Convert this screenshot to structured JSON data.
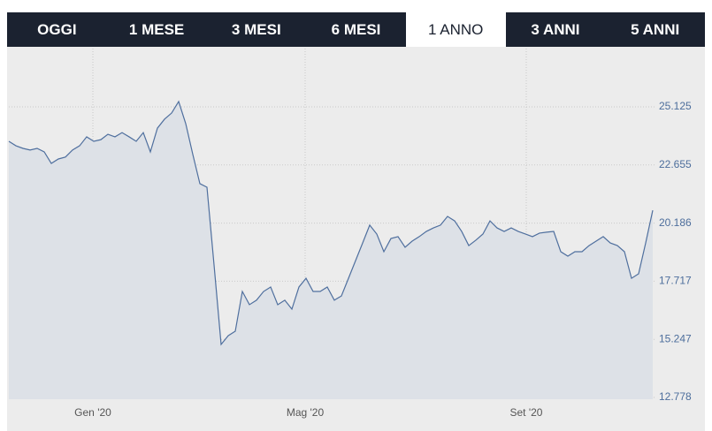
{
  "tabs": [
    "OGGI",
    "1 MESE",
    "3 MESI",
    "6 MESI",
    "1 ANNO",
    "3 ANNI",
    "5 ANNI"
  ],
  "active_tab": 4,
  "chart_data": {
    "type": "area",
    "color": "#4f6f9e",
    "fill": "#dde1e7",
    "grid": true,
    "values": [
      23.66,
      23.47,
      23.36,
      23.29,
      23.36,
      23.21,
      22.72,
      22.91,
      22.99,
      23.29,
      23.47,
      23.85,
      23.66,
      23.73,
      23.96,
      23.85,
      24.03,
      23.85,
      23.66,
      24.03,
      23.21,
      24.22,
      24.6,
      24.86,
      25.35,
      24.41,
      23.1,
      21.86,
      21.71,
      18.41,
      15.03,
      15.4,
      15.59,
      17.28,
      16.72,
      16.91,
      17.28,
      17.47,
      16.72,
      16.91,
      16.53,
      17.47,
      17.84,
      17.28,
      17.28,
      17.47,
      16.91,
      17.09,
      17.84,
      18.59,
      19.34,
      20.1,
      19.72,
      18.97,
      19.53,
      19.61,
      19.16,
      19.42,
      19.61,
      19.83,
      19.98,
      20.1,
      20.47,
      20.28,
      19.83,
      19.23,
      19.46,
      19.72,
      20.28,
      19.98,
      19.83,
      19.98,
      19.83,
      19.72,
      19.61,
      19.76,
      19.8,
      19.83,
      18.97,
      18.78,
      18.97,
      18.97,
      19.23,
      19.42,
      19.61,
      19.34,
      19.23,
      18.97,
      17.84,
      18.03,
      19.34,
      20.73
    ],
    "xlim": [
      0,
      91
    ],
    "xticks": [
      {
        "value": 11.875,
        "label": "Gen '20"
      },
      {
        "value": 41.875,
        "label": "Mag '20"
      },
      {
        "value": 73.125,
        "label": "Set '20"
      }
    ],
    "ylim": [
      12.778,
      27.6
    ],
    "yticks": [
      12.778,
      15.247,
      17.717,
      20.186,
      22.655,
      25.125
    ]
  }
}
